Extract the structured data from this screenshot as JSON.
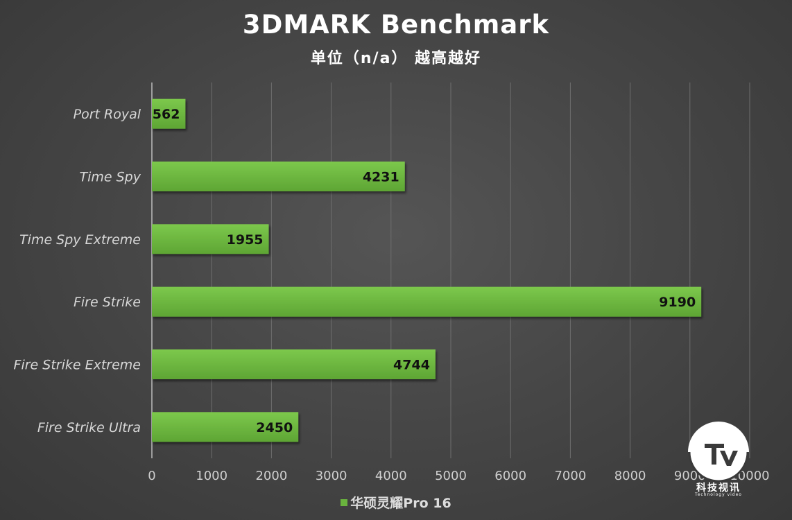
{
  "chart_data": {
    "type": "bar",
    "orientation": "horizontal",
    "title": "3DMARK Benchmark",
    "subtitle": "单位（n/a） 越高越好",
    "categories": [
      "Port Royal",
      "Time Spy",
      "Time Spy Extreme",
      "Fire Strike",
      "Fire Strike Extreme",
      "Fire Strike Ultra"
    ],
    "series": [
      {
        "name": "华硕灵耀Pro 16",
        "values": [
          562,
          4231,
          1955,
          9190,
          4744,
          2450
        ]
      }
    ],
    "xlim": [
      0,
      10000
    ],
    "xticks": [
      0,
      1000,
      2000,
      3000,
      4000,
      5000,
      6000,
      7000,
      8000,
      9000,
      10000
    ],
    "grid": true,
    "legend_position": "bottom",
    "bar_color": "#6ab43e"
  },
  "watermark": {
    "text": "科技视讯",
    "subtext": "Technology video"
  }
}
